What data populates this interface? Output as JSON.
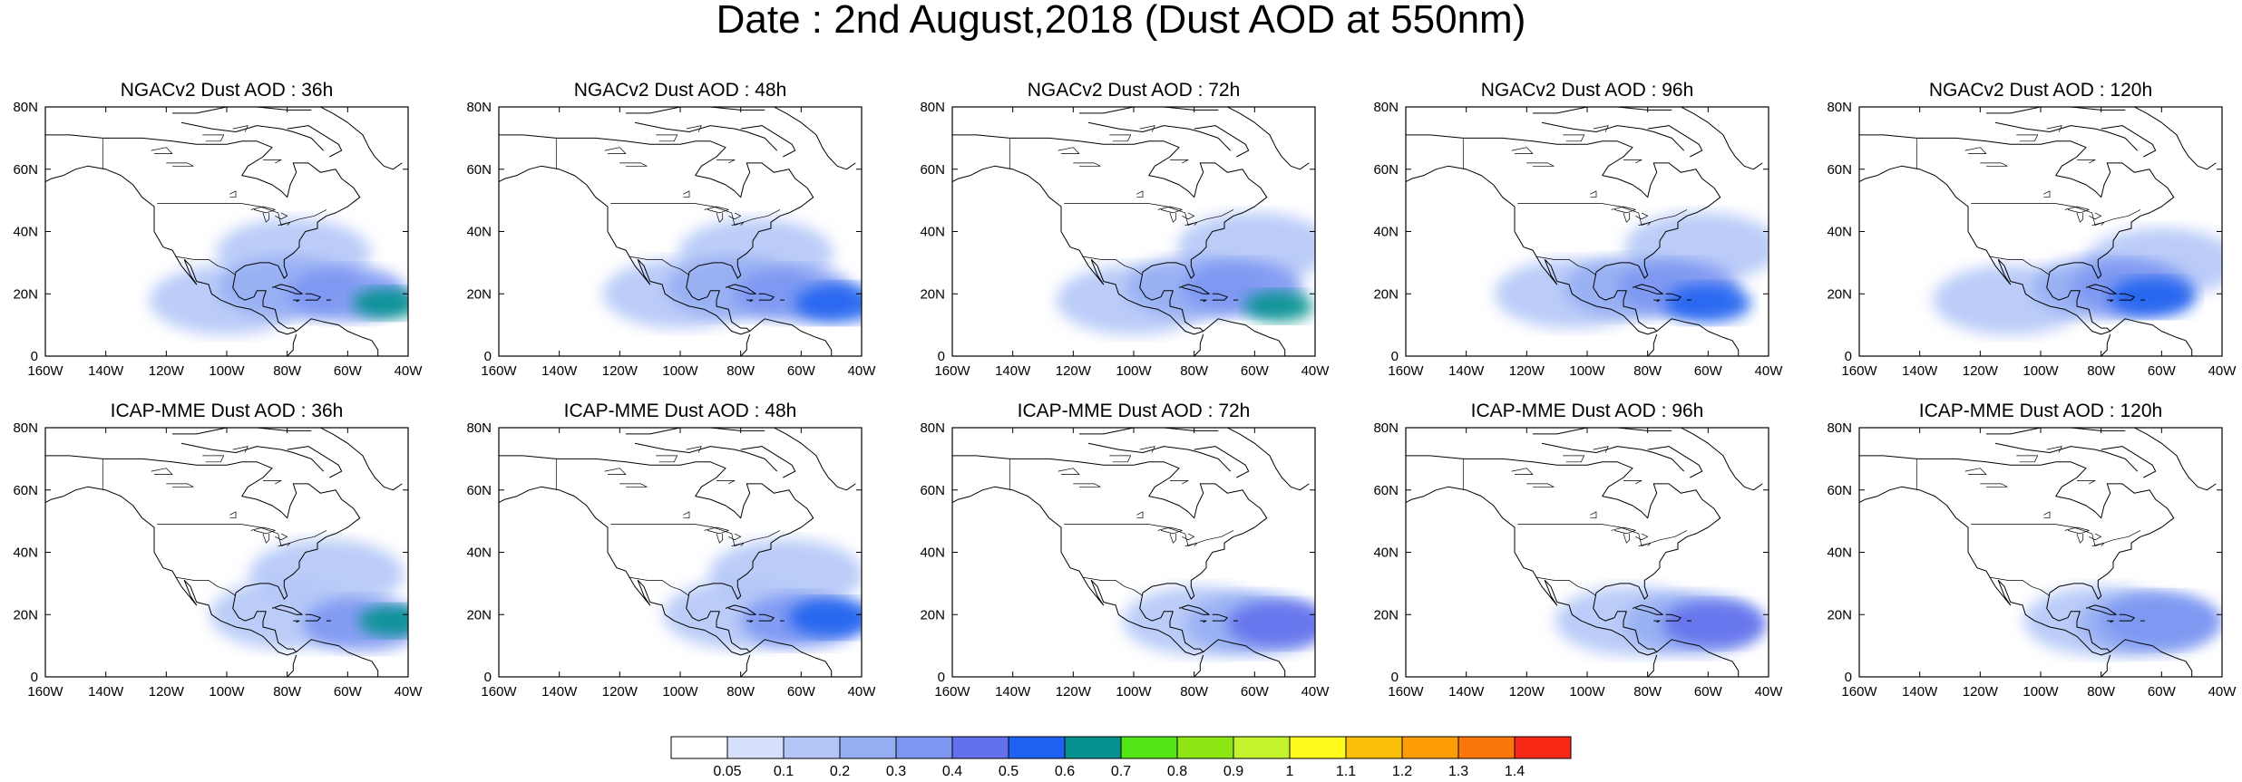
{
  "title": "Date : 2nd August,2018 (Dust AOD at 550nm)",
  "map_extent": {
    "lon": [
      -160,
      -40
    ],
    "lat": [
      0,
      80
    ]
  },
  "lon_tick_labels": [
    "160W",
    "140W",
    "120W",
    "100W",
    "80W",
    "60W",
    "40W"
  ],
  "lat_tick_labels": [
    "0",
    "20N",
    "40N",
    "60N",
    "80N"
  ],
  "panels": [
    {
      "title": "NGACv2 Dust AOD : 36h"
    },
    {
      "title": "NGACv2 Dust AOD : 48h"
    },
    {
      "title": "NGACv2 Dust AOD : 72h"
    },
    {
      "title": "NGACv2 Dust AOD : 96h"
    },
    {
      "title": "NGACv2 Dust AOD : 120h"
    },
    {
      "title": "ICAP-MME Dust AOD : 36h"
    },
    {
      "title": "ICAP-MME Dust AOD : 48h"
    },
    {
      "title": "ICAP-MME Dust AOD : 72h"
    },
    {
      "title": "ICAP-MME Dust AOD : 96h"
    },
    {
      "title": "ICAP-MME Dust AOD : 120h"
    }
  ],
  "dust_plumes": [
    [
      {
        "lon": -47,
        "lat": 17,
        "value": 0.6
      },
      {
        "lon": -60,
        "lat": 20,
        "value": 0.3
      },
      {
        "lon": -80,
        "lat": 22,
        "value": 0.2
      },
      {
        "lon": -100,
        "lat": 18,
        "value": 0.1
      },
      {
        "lon": -78,
        "lat": 33,
        "value": 0.1
      }
    ],
    [
      {
        "lon": -48,
        "lat": 17,
        "value": 0.5
      },
      {
        "lon": -62,
        "lat": 20,
        "value": 0.3
      },
      {
        "lon": -82,
        "lat": 22,
        "value": 0.2
      },
      {
        "lon": -100,
        "lat": 20,
        "value": 0.1
      },
      {
        "lon": -75,
        "lat": 33,
        "value": 0.1
      }
    ],
    [
      {
        "lon": -52,
        "lat": 16,
        "value": 0.6
      },
      {
        "lon": -64,
        "lat": 22,
        "value": 0.3
      },
      {
        "lon": -80,
        "lat": 22,
        "value": 0.2
      },
      {
        "lon": -60,
        "lat": 35,
        "value": 0.1
      },
      {
        "lon": -100,
        "lat": 18,
        "value": 0.1
      }
    ],
    [
      {
        "lon": -60,
        "lat": 17,
        "value": 0.5
      },
      {
        "lon": -70,
        "lat": 22,
        "value": 0.3
      },
      {
        "lon": -85,
        "lat": 22,
        "value": 0.2
      },
      {
        "lon": -105,
        "lat": 20,
        "value": 0.1
      },
      {
        "lon": -62,
        "lat": 35,
        "value": 0.1
      }
    ],
    [
      {
        "lon": -63,
        "lat": 19,
        "value": 0.5
      },
      {
        "lon": -70,
        "lat": 22,
        "value": 0.3
      },
      {
        "lon": -80,
        "lat": 22,
        "value": 0.2
      },
      {
        "lon": -60,
        "lat": 30,
        "value": 0.1
      },
      {
        "lon": -110,
        "lat": 18,
        "value": 0.1
      }
    ],
    [
      {
        "lon": -45,
        "lat": 18,
        "value": 0.6
      },
      {
        "lon": -55,
        "lat": 17,
        "value": 0.3
      },
      {
        "lon": -80,
        "lat": 20,
        "value": 0.1
      },
      {
        "lon": -67,
        "lat": 33,
        "value": 0.1
      }
    ],
    [
      {
        "lon": -50,
        "lat": 19,
        "value": 0.5
      },
      {
        "lon": -60,
        "lat": 18,
        "value": 0.3
      },
      {
        "lon": -80,
        "lat": 20,
        "value": 0.1
      },
      {
        "lon": -65,
        "lat": 33,
        "value": 0.1
      }
    ],
    [
      {
        "lon": -52,
        "lat": 17,
        "value": 0.4
      },
      {
        "lon": -60,
        "lat": 17,
        "value": 0.2
      },
      {
        "lon": -78,
        "lat": 18,
        "value": 0.1
      }
    ],
    [
      {
        "lon": -58,
        "lat": 17,
        "value": 0.4
      },
      {
        "lon": -65,
        "lat": 17,
        "value": 0.2
      },
      {
        "lon": -85,
        "lat": 18,
        "value": 0.1
      }
    ],
    [
      {
        "lon": -60,
        "lat": 18,
        "value": 0.3
      },
      {
        "lon": -65,
        "lat": 17,
        "value": 0.2
      },
      {
        "lon": -80,
        "lat": 18,
        "value": 0.1
      }
    ]
  ],
  "colorbar": {
    "labels": [
      "0.05",
      "0.1",
      "0.2",
      "0.3",
      "0.4",
      "0.5",
      "0.6",
      "0.7",
      "0.8",
      "0.9",
      "1",
      "1.1",
      "1.2",
      "1.3",
      "1.4"
    ],
    "colors": [
      "#ffffff",
      "#d6e0fb",
      "#b4c6f7",
      "#95aef3",
      "#7c96f2",
      "#6270ec",
      "#1d62f0",
      "#06918f",
      "#55e617",
      "#8ee615",
      "#c4f22d",
      "#fffa1c",
      "#fdbe08",
      "#fd9e05",
      "#fc770a",
      "#f82a17"
    ]
  }
}
